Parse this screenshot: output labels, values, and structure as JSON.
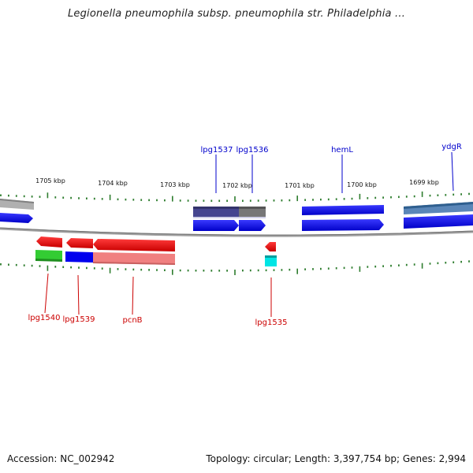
{
  "title": "Legionella pneumophila subsp. pneumophila str. Philadelphia ...",
  "accession_text": "Accession: NC_002942",
  "topology_text": "Topology: circular; Length: 3,397,754 bp; Genes: 2,994",
  "kbp_labels": [
    "1705 kbp",
    "1704 kbp",
    "1703 kbp",
    "1702 kbp",
    "1701 kbp",
    "1700 kbp",
    "1699 kbp"
  ],
  "upper_gene_labels": [
    "lpg1537",
    "lpg1536",
    "hemL",
    "ydgR"
  ],
  "lower_gene_labels": [
    "lpg1540",
    "lpg1539",
    "pcnB",
    "lpg1535"
  ],
  "colors": {
    "upper_label": "#0000cc",
    "lower_label": "#cc0000",
    "tick": "#2e7d2e",
    "backbone": "#888888",
    "forward_cds": "#0000ff",
    "reverse_cds": "#ff0000"
  }
}
